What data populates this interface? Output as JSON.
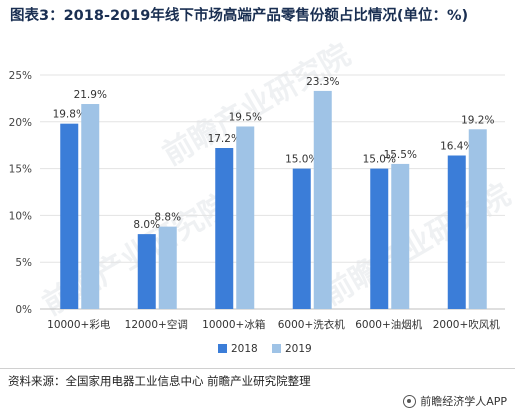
{
  "title": "图表3：2018-2019年线下市场高端产品零售份额占比情况(单位：%)",
  "source": "资料来源：全国家用电器工业信息中心 前瞻产业研究院整理",
  "brand": "前瞻经济学人APP",
  "watermark": "前瞻产业研究院",
  "colors": {
    "series2018": "#3b7dd8",
    "series2019": "#9fc3e6"
  },
  "chart_data": {
    "type": "bar",
    "categories": [
      "10000+彩电",
      "12000+空调",
      "10000+冰箱",
      "6000+洗衣机",
      "6000+油烟机",
      "2000+吹风机"
    ],
    "series": [
      {
        "name": "2018",
        "values": [
          19.8,
          8.0,
          17.2,
          15.0,
          15.0,
          16.4
        ],
        "labels": [
          "19.8%",
          "8.0%",
          "17.2%",
          "15.0%",
          "15.0%",
          "16.4%"
        ]
      },
      {
        "name": "2019",
        "values": [
          21.9,
          8.8,
          19.5,
          23.3,
          15.5,
          19.2
        ],
        "labels": [
          "21.9%",
          "8.8%",
          "19.5%",
          "23.3%",
          "15.5%",
          "19.2%"
        ]
      }
    ],
    "yticks": [
      "0%",
      "5%",
      "10%",
      "15%",
      "20%",
      "25%"
    ],
    "ylim": [
      0,
      25
    ],
    "grid": true,
    "legend": "bottom"
  }
}
